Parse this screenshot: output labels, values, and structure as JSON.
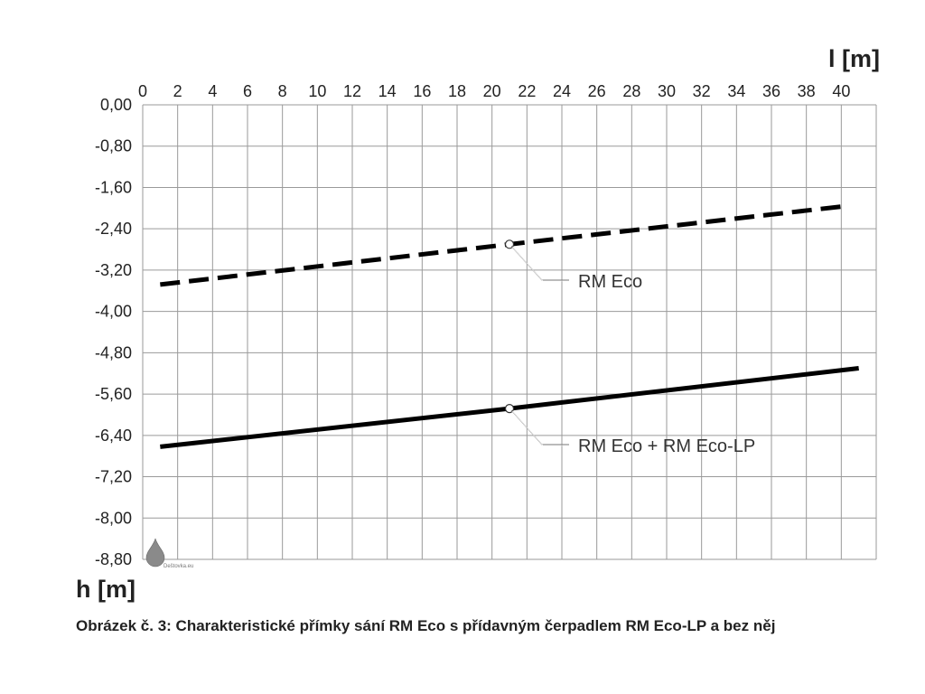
{
  "chart_data": {
    "type": "line",
    "xlabel": "l [m]",
    "ylabel": "h [m]",
    "x_ticks": [
      "0",
      "2",
      "4",
      "6",
      "8",
      "10",
      "12",
      "14",
      "16",
      "18",
      "20",
      "22",
      "24",
      "26",
      "28",
      "30",
      "32",
      "34",
      "36",
      "38",
      "40"
    ],
    "y_ticks": [
      "0,00",
      "-0,80",
      "-1,60",
      "-2,40",
      "-3,20",
      "-4,00",
      "-4,80",
      "-5,60",
      "-6,40",
      "-7,20",
      "-8,00",
      "-8,80"
    ],
    "xlim": [
      0,
      42
    ],
    "ylim": [
      -8.8,
      0
    ],
    "grid": true,
    "x_axis_position": "top",
    "series": [
      {
        "name": "RM Eco",
        "style": "dashed",
        "color": "#000000",
        "x": [
          1,
          21,
          40
        ],
        "y": [
          -3.48,
          -2.7,
          -1.97
        ],
        "marker_x": 21,
        "marker_y": -2.7
      },
      {
        "name": "RM Eco + RM Eco-LP",
        "style": "solid",
        "color": "#000000",
        "x": [
          1,
          21,
          41
        ],
        "y": [
          -6.62,
          -5.88,
          -5.1
        ],
        "marker_x": 21,
        "marker_y": -5.88
      }
    ]
  },
  "watermark": {
    "text": "Deštovka.eu",
    "icon": "water-drop-icon"
  },
  "caption": "Obrázek č. 3: Charakteristické přímky sání RM Eco s přídavným čerpadlem RM Eco-LP a bez něj"
}
